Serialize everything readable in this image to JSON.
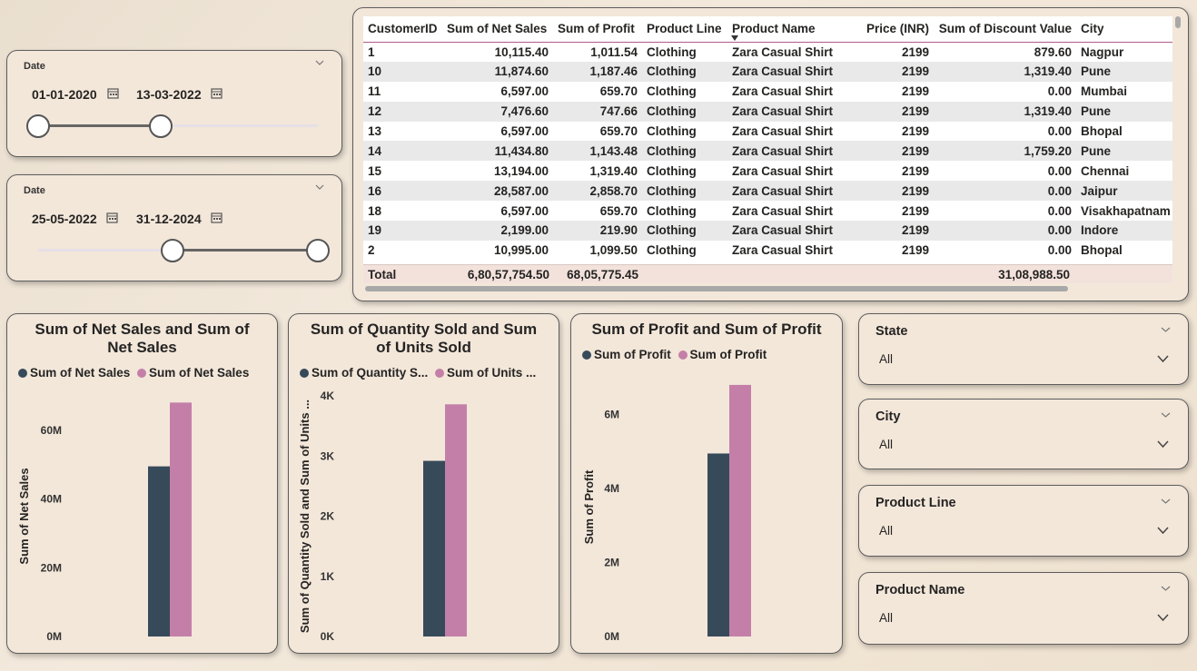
{
  "date_slicer_1": {
    "title": "Date",
    "start": "01-01-2020",
    "end": "13-03-2022"
  },
  "date_slicer_2": {
    "title": "Date",
    "start": "25-05-2022",
    "end": "31-12-2024"
  },
  "table": {
    "columns": [
      "CustomerID",
      "Sum of Net Sales",
      "Sum of Profit",
      "Product Line",
      "Product Name",
      "Price (INR)",
      "Sum of Discount Value",
      "City"
    ],
    "rows": [
      [
        "1",
        "10,115.40",
        "1,011.54",
        "Clothing",
        "Zara Casual Shirt",
        "2199",
        "879.60",
        "Nagpur"
      ],
      [
        "10",
        "11,874.60",
        "1,187.46",
        "Clothing",
        "Zara Casual Shirt",
        "2199",
        "1,319.40",
        "Pune"
      ],
      [
        "11",
        "6,597.00",
        "659.70",
        "Clothing",
        "Zara Casual Shirt",
        "2199",
        "0.00",
        "Mumbai"
      ],
      [
        "12",
        "7,476.60",
        "747.66",
        "Clothing",
        "Zara Casual Shirt",
        "2199",
        "1,319.40",
        "Pune"
      ],
      [
        "13",
        "6,597.00",
        "659.70",
        "Clothing",
        "Zara Casual Shirt",
        "2199",
        "0.00",
        "Bhopal"
      ],
      [
        "14",
        "11,434.80",
        "1,143.48",
        "Clothing",
        "Zara Casual Shirt",
        "2199",
        "1,759.20",
        "Pune"
      ],
      [
        "15",
        "13,194.00",
        "1,319.40",
        "Clothing",
        "Zara Casual Shirt",
        "2199",
        "0.00",
        "Chennai"
      ],
      [
        "16",
        "28,587.00",
        "2,858.70",
        "Clothing",
        "Zara Casual Shirt",
        "2199",
        "0.00",
        "Jaipur"
      ],
      [
        "18",
        "6,597.00",
        "659.70",
        "Clothing",
        "Zara Casual Shirt",
        "2199",
        "0.00",
        "Visakhapatnam"
      ],
      [
        "19",
        "2,199.00",
        "219.90",
        "Clothing",
        "Zara Casual Shirt",
        "2199",
        "0.00",
        "Indore"
      ],
      [
        "2",
        "10,995.00",
        "1,099.50",
        "Clothing",
        "Zara Casual Shirt",
        "2199",
        "0.00",
        "Bhopal"
      ]
    ],
    "total": {
      "label": "Total",
      "net_sales": "6,80,57,754.50",
      "profit": "68,05,775.45",
      "discount": "31,08,988.50"
    }
  },
  "colors": {
    "dark": "#374a5a",
    "pink": "#c47fa8"
  },
  "chart_data": [
    {
      "type": "bar",
      "title": "Sum of Net Sales and Sum of Net Sales",
      "ylabel": "Sum of Net Sales",
      "ylim": [
        0,
        70000000
      ],
      "ticks": [
        0,
        20000000,
        40000000,
        60000000
      ],
      "tick_labels": [
        "0M",
        "20M",
        "40M",
        "60M"
      ],
      "series": [
        {
          "name": "Sum of Net Sales",
          "value": 49500000,
          "color": "#374a5a"
        },
        {
          "name": "Sum of Net Sales",
          "value": 68057754.5,
          "color": "#c47fa8"
        }
      ]
    },
    {
      "type": "bar",
      "title": "Sum of Quantity Sold and Sum of Units Sold",
      "ylabel": "Sum of Quantity Sold and Sum of Units ...",
      "ylim": [
        0,
        4000
      ],
      "ticks": [
        0,
        1000,
        2000,
        3000,
        4000
      ],
      "tick_labels": [
        "0K",
        "1K",
        "2K",
        "3K",
        "4K"
      ],
      "series": [
        {
          "name": "Sum of Quantity S...",
          "value": 2920,
          "color": "#374a5a"
        },
        {
          "name": "Sum of Units ...",
          "value": 3860,
          "color": "#c47fa8"
        }
      ]
    },
    {
      "type": "bar",
      "title": "Sum of Profit and Sum of Profit",
      "ylabel": "Sum of Profit",
      "ylim": [
        0,
        7000000
      ],
      "ticks": [
        0,
        2000000,
        4000000,
        6000000
      ],
      "tick_labels": [
        "0M",
        "2M",
        "4M",
        "6M"
      ],
      "series": [
        {
          "name": "Sum of Profit",
          "value": 4950000,
          "color": "#374a5a"
        },
        {
          "name": "Sum of Profit",
          "value": 6805775.45,
          "color": "#c47fa8"
        }
      ]
    }
  ],
  "filters": [
    {
      "title": "State",
      "value": "All"
    },
    {
      "title": "City",
      "value": "All"
    },
    {
      "title": "Product Line",
      "value": "All"
    },
    {
      "title": "Product Name",
      "value": "All"
    }
  ]
}
